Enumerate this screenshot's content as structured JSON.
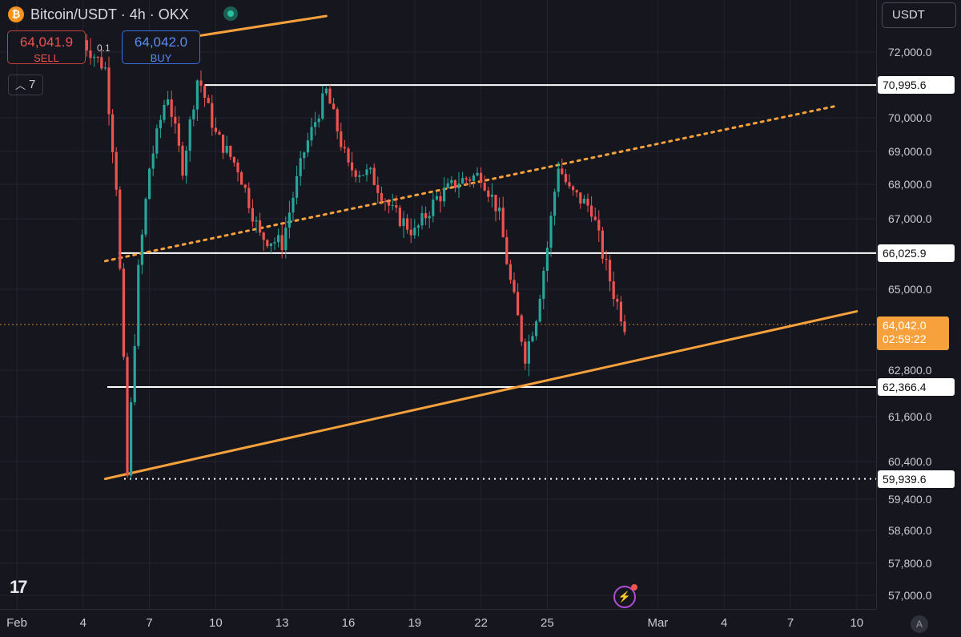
{
  "header": {
    "symbol_title": "Bitcoin/USDT · 4h · OKX",
    "sell_price": "64,041.9",
    "sell_label": "SELL",
    "buy_price": "64,042.0",
    "buy_label": "BUY",
    "spread": "0.1",
    "indicator_count": "7",
    "currency": "USDT"
  },
  "colors": {
    "background": "#15161e",
    "up": "#26a69a",
    "down": "#ef5350",
    "trendline": "#f7a13d",
    "level": "#ffffff"
  },
  "price_axis": {
    "ticks": [
      "72,000.0",
      "70,000.0",
      "69,000.0",
      "68,000.0",
      "67,000.0",
      "65,000.0",
      "62,800.0",
      "61,600.0",
      "60,400.0",
      "59,400.0",
      "58,600.0",
      "57,800.0",
      "57,000.0"
    ],
    "level_labels": [
      "70,995.6",
      "66,025.9",
      "62,366.4",
      "59,939.6"
    ],
    "current_price": "64,042.0",
    "countdown": "02:59:22"
  },
  "time_axis": {
    "labels": [
      "Feb",
      "4",
      "7",
      "10",
      "13",
      "16",
      "19",
      "22",
      "25",
      "Mar",
      "4",
      "7",
      "10"
    ]
  },
  "chart_data": {
    "type": "candlestick",
    "symbol": "BTC/USDT",
    "interval": "4h",
    "x_range": [
      "Feb 1",
      "Mar 12"
    ],
    "y_range": [
      56800,
      72900
    ],
    "grid": true,
    "horizontal_levels": [
      70995.6,
      66025.9,
      62366.4,
      59939.6
    ],
    "last_price": 64042.0,
    "trendlines": [
      {
        "style": "solid",
        "from": {
          "x": "Feb 5",
          "y": 59940
        },
        "to": {
          "x": "Mar 10",
          "y": 64400
        }
      },
      {
        "style": "dotted",
        "from": {
          "x": "Feb 5",
          "y": 65800
        },
        "to": {
          "x": "Mar 9",
          "y": 70350
        }
      },
      {
        "style": "solid",
        "from": {
          "x": "Feb 8",
          "y": 72300
        },
        "to": {
          "x": "Feb 15",
          "y": 73000
        }
      }
    ],
    "price_path": [
      {
        "x": "Feb 4",
        "y": 72300
      },
      {
        "x": "Feb 5",
        "y": 71500
      },
      {
        "x": "Feb 5.5",
        "y": 68000
      },
      {
        "x": "Feb 5.8",
        "y": 63500
      },
      {
        "x": "Feb 6",
        "y": 60000
      },
      {
        "x": "Feb 6.5",
        "y": 65500
      },
      {
        "x": "Feb 7",
        "y": 68500
      },
      {
        "x": "Feb 7.8",
        "y": 70800
      },
      {
        "x": "Feb 8.5",
        "y": 68500
      },
      {
        "x": "Feb 9.2",
        "y": 71300
      },
      {
        "x": "Feb 10",
        "y": 69500
      },
      {
        "x": "Feb 11",
        "y": 68500
      },
      {
        "x": "Feb 12",
        "y": 66500
      },
      {
        "x": "Feb 13",
        "y": 66300
      },
      {
        "x": "Feb 14",
        "y": 69000
      },
      {
        "x": "Feb 15",
        "y": 70800
      },
      {
        "x": "Feb 16",
        "y": 68500
      },
      {
        "x": "Feb 17",
        "y": 68300
      },
      {
        "x": "Feb 18",
        "y": 67200
      },
      {
        "x": "Feb 19",
        "y": 66600
      },
      {
        "x": "Feb 20",
        "y": 67600
      },
      {
        "x": "Feb 21",
        "y": 68100
      },
      {
        "x": "Feb 22",
        "y": 68300
      },
      {
        "x": "Feb 22.8",
        "y": 67200
      },
      {
        "x": "Feb 23.3",
        "y": 65300
      },
      {
        "x": "Feb 24",
        "y": 63200
      },
      {
        "x": "Feb 24.5",
        "y": 64300
      },
      {
        "x": "Feb 25",
        "y": 66200
      },
      {
        "x": "Feb 25.5",
        "y": 68600
      },
      {
        "x": "Feb 26",
        "y": 67800
      },
      {
        "x": "Feb 27",
        "y": 67300
      },
      {
        "x": "Feb 27.5",
        "y": 66000
      },
      {
        "x": "Feb 28",
        "y": 64900
      },
      {
        "x": "Feb 28.5",
        "y": 64042
      }
    ]
  }
}
